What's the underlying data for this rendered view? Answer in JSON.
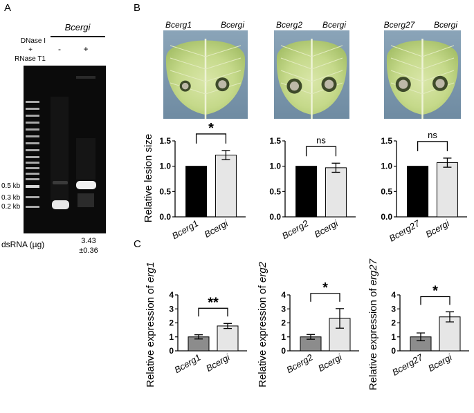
{
  "panel_labels": {
    "a": "A",
    "b": "B",
    "c": "C"
  },
  "panel_a": {
    "title": "Bcergi",
    "treatment_line1": "DNase I",
    "treatment_line2": "+",
    "treatment_line3": "RNase T1",
    "lane_minus": "-",
    "lane_plus": "+",
    "marker_labels": [
      "0.5 kb",
      "0.3 kb",
      "0.2 kb"
    ],
    "dsrna_label": "dsRNA (µg)",
    "dsrna_value_line1": "3.43",
    "dsrna_value_line2": "±0.36"
  },
  "panel_b": {
    "leaves": [
      {
        "left": "Bcerg1",
        "right": "Bcergi"
      },
      {
        "left": "Bcerg2",
        "right": "Bcergi"
      },
      {
        "left": "Bcerg27",
        "right": "Bcergi"
      }
    ]
  },
  "colors": {
    "black_bar": "#000000",
    "gray_bar": "#8c8c8c",
    "light_bar": "#e6e6e6"
  },
  "chart_data": [
    {
      "type": "bar",
      "panel": "B",
      "categories": [
        "Bcerg1",
        "Bcergi"
      ],
      "values": [
        1.0,
        1.22
      ],
      "errors": [
        0,
        0.09
      ],
      "ylabel": "Relative lesion size",
      "ylim": [
        0,
        1.5
      ],
      "yticks": [
        "0.0",
        "0.5",
        "1.0",
        "1.5"
      ],
      "significance": "*",
      "bar_colors": [
        "#000000",
        "#e6e6e6"
      ]
    },
    {
      "type": "bar",
      "panel": "B",
      "categories": [
        "Bcerg2",
        "Bcergi"
      ],
      "values": [
        1.0,
        0.97
      ],
      "errors": [
        0,
        0.09
      ],
      "ylabel": "",
      "ylim": [
        0,
        1.5
      ],
      "yticks": [
        "0.0",
        "0.5",
        "1.0",
        "1.5"
      ],
      "significance": "ns",
      "bar_colors": [
        "#000000",
        "#e6e6e6"
      ]
    },
    {
      "type": "bar",
      "panel": "B",
      "categories": [
        "Bcerg27",
        "Bcergi"
      ],
      "values": [
        1.0,
        1.07
      ],
      "errors": [
        0,
        0.09
      ],
      "ylabel": "",
      "ylim": [
        0,
        1.5
      ],
      "yticks": [
        "0.0",
        "0.5",
        "1.0",
        "1.5"
      ],
      "significance": "ns",
      "bar_colors": [
        "#000000",
        "#e6e6e6"
      ]
    },
    {
      "type": "bar",
      "panel": "C",
      "categories": [
        "Bcerg1",
        "Bcergi"
      ],
      "values": [
        1.0,
        1.78
      ],
      "errors": [
        0.15,
        0.18
      ],
      "ylabel_prefix": "Relative expression of ",
      "ylabel_gene": "erg1",
      "ylim": [
        0,
        4
      ],
      "yticks": [
        "0",
        "1",
        "2",
        "3",
        "4"
      ],
      "significance": "**",
      "bar_colors": [
        "#8c8c8c",
        "#e6e6e6"
      ]
    },
    {
      "type": "bar",
      "panel": "C",
      "categories": [
        "Bcerg2",
        "Bcergi"
      ],
      "values": [
        1.0,
        2.32
      ],
      "errors": [
        0.17,
        0.7
      ],
      "ylabel_prefix": "Relative expression of ",
      "ylabel_gene": "erg2",
      "ylim": [
        0,
        4
      ],
      "yticks": [
        "0",
        "1",
        "2",
        "3",
        "4"
      ],
      "significance": "*",
      "bar_colors": [
        "#8c8c8c",
        "#e6e6e6"
      ]
    },
    {
      "type": "bar",
      "panel": "C",
      "categories": [
        "Bcerg27",
        "Bcergi"
      ],
      "values": [
        1.0,
        2.43
      ],
      "errors": [
        0.28,
        0.36
      ],
      "ylabel_prefix": "Relative expression of ",
      "ylabel_gene": "erg27",
      "ylim": [
        0,
        4
      ],
      "yticks": [
        "0",
        "1",
        "2",
        "3",
        "4"
      ],
      "significance": "*",
      "bar_colors": [
        "#8c8c8c",
        "#e6e6e6"
      ]
    }
  ]
}
